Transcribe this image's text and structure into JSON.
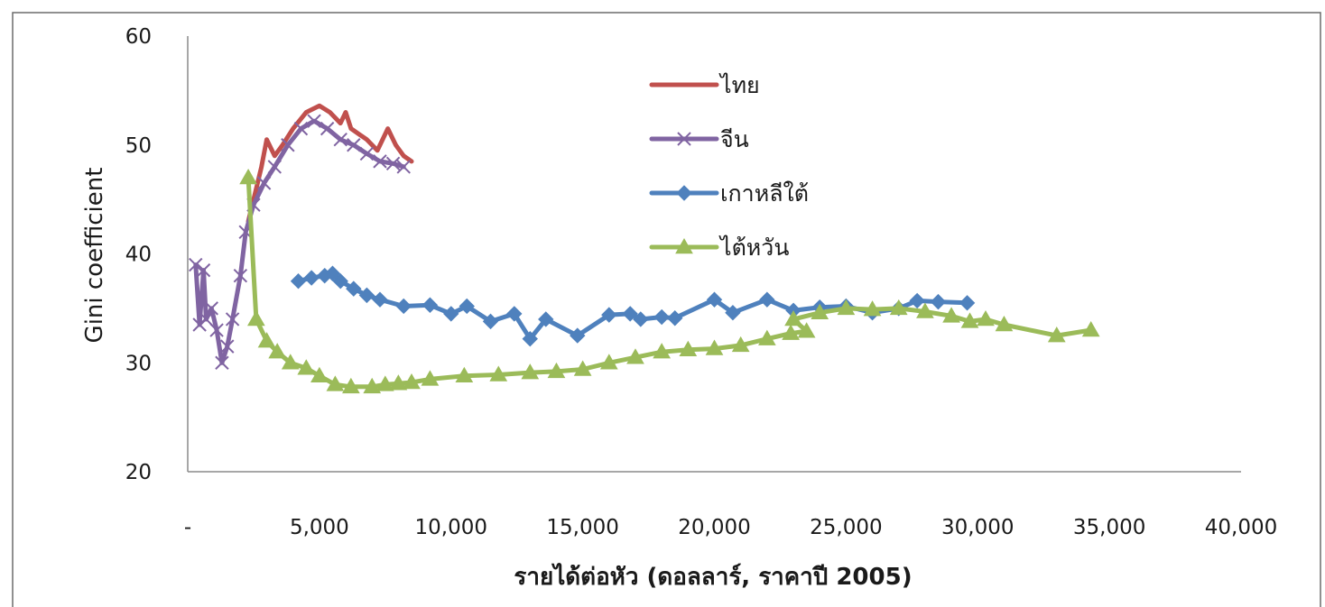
{
  "chart_data": {
    "type": "line",
    "title": "",
    "xlabel": "รายได้ต่อหัว (ดอลลาร์, ราคาปี 2005)",
    "ylabel": "Gini coefficient",
    "xlim": [
      0,
      40000
    ],
    "ylim": [
      20,
      60
    ],
    "x_ticks": [
      0,
      5000,
      10000,
      15000,
      20000,
      25000,
      30000,
      35000,
      40000
    ],
    "x_tick_labels": [
      "-",
      "5,000",
      "10,000",
      "15,000",
      "20,000",
      "25,000",
      "30,000",
      "35,000",
      "40,000"
    ],
    "y_ticks": [
      20,
      30,
      40,
      50,
      60
    ],
    "y_tick_labels": [
      "20",
      "30",
      "40",
      "50",
      "60"
    ],
    "grid": false,
    "legend_position": "top-center",
    "series": [
      {
        "name": "ไทย",
        "color": "#c0504d",
        "marker": "none",
        "points": [
          [
            2300,
            43
          ],
          [
            2600,
            46
          ],
          [
            2800,
            48
          ],
          [
            3000,
            50.5
          ],
          [
            3300,
            49
          ],
          [
            3600,
            50
          ],
          [
            4000,
            51.5
          ],
          [
            4500,
            53
          ],
          [
            5000,
            53.6
          ],
          [
            5400,
            53
          ],
          [
            5800,
            52
          ],
          [
            6000,
            53
          ],
          [
            6200,
            51.5
          ],
          [
            6500,
            51
          ],
          [
            6800,
            50.5
          ],
          [
            7200,
            49.5
          ],
          [
            7600,
            51.5
          ],
          [
            7900,
            50
          ],
          [
            8200,
            49
          ],
          [
            8500,
            48.5
          ]
        ]
      },
      {
        "name": "จีน",
        "color": "#8064a2",
        "marker": "x",
        "points": [
          [
            300,
            39
          ],
          [
            450,
            33.5
          ],
          [
            600,
            38.5
          ],
          [
            700,
            34
          ],
          [
            900,
            35
          ],
          [
            1100,
            33
          ],
          [
            1300,
            30
          ],
          [
            1500,
            31.5
          ],
          [
            1700,
            34
          ],
          [
            2000,
            38
          ],
          [
            2200,
            42
          ],
          [
            2500,
            44.5
          ],
          [
            2900,
            46.5
          ],
          [
            3300,
            48
          ],
          [
            3800,
            50
          ],
          [
            4300,
            51.5
          ],
          [
            4800,
            52.2
          ],
          [
            5300,
            51.5
          ],
          [
            5800,
            50.5
          ],
          [
            6300,
            50
          ],
          [
            6800,
            49.2
          ],
          [
            7300,
            48.5
          ],
          [
            7800,
            48.3
          ],
          [
            8200,
            48
          ]
        ]
      },
      {
        "name": "เกาหลีใต้",
        "color": "#4f81bd",
        "marker": "diamond",
        "points": [
          [
            4200,
            37.5
          ],
          [
            4700,
            37.8
          ],
          [
            5200,
            38
          ],
          [
            5500,
            38.2
          ],
          [
            5800,
            37.5
          ],
          [
            6300,
            36.8
          ],
          [
            6800,
            36.2
          ],
          [
            7300,
            35.8
          ],
          [
            8200,
            35.2
          ],
          [
            9200,
            35.3
          ],
          [
            10000,
            34.5
          ],
          [
            10600,
            35.2
          ],
          [
            11500,
            33.8
          ],
          [
            12400,
            34.5
          ],
          [
            13000,
            32.2
          ],
          [
            13600,
            34
          ],
          [
            14800,
            32.5
          ],
          [
            16000,
            34.4
          ],
          [
            16800,
            34.5
          ],
          [
            17200,
            34
          ],
          [
            18000,
            34.2
          ],
          [
            18500,
            34.1
          ],
          [
            20000,
            35.8
          ],
          [
            20700,
            34.6
          ],
          [
            22000,
            35.8
          ],
          [
            23000,
            34.8
          ],
          [
            24000,
            35.1
          ],
          [
            25000,
            35.2
          ],
          [
            26000,
            34.6
          ],
          [
            27000,
            35
          ],
          [
            27700,
            35.7
          ],
          [
            28500,
            35.6
          ],
          [
            29600,
            35.5
          ]
        ]
      },
      {
        "name": "ไต้หวัน",
        "color": "#9bbb59",
        "marker": "triangle",
        "points": [
          [
            2300,
            47
          ],
          [
            2600,
            34
          ],
          [
            3000,
            32
          ],
          [
            3400,
            31
          ],
          [
            3900,
            30
          ],
          [
            4500,
            29.5
          ],
          [
            5000,
            28.8
          ],
          [
            5600,
            28
          ],
          [
            6200,
            27.8
          ],
          [
            7000,
            27.8
          ],
          [
            7500,
            28
          ],
          [
            8000,
            28.1
          ],
          [
            8500,
            28.2
          ],
          [
            9200,
            28.5
          ],
          [
            10500,
            28.8
          ],
          [
            11800,
            28.9
          ],
          [
            13000,
            29.1
          ],
          [
            14000,
            29.2
          ],
          [
            15000,
            29.4
          ],
          [
            16000,
            30
          ],
          [
            17000,
            30.5
          ],
          [
            18000,
            31
          ],
          [
            19000,
            31.2
          ],
          [
            20000,
            31.3
          ],
          [
            21000,
            31.6
          ],
          [
            22000,
            32.2
          ],
          [
            22900,
            32.7
          ],
          [
            23500,
            32.9
          ],
          [
            23000,
            34
          ],
          [
            24000,
            34.6
          ],
          [
            25000,
            35
          ],
          [
            26000,
            34.9
          ],
          [
            27000,
            35
          ],
          [
            28000,
            34.7
          ],
          [
            29000,
            34.3
          ],
          [
            29700,
            33.8
          ],
          [
            30300,
            34
          ],
          [
            31000,
            33.5
          ],
          [
            33000,
            32.5
          ],
          [
            34300,
            33
          ]
        ]
      }
    ]
  }
}
